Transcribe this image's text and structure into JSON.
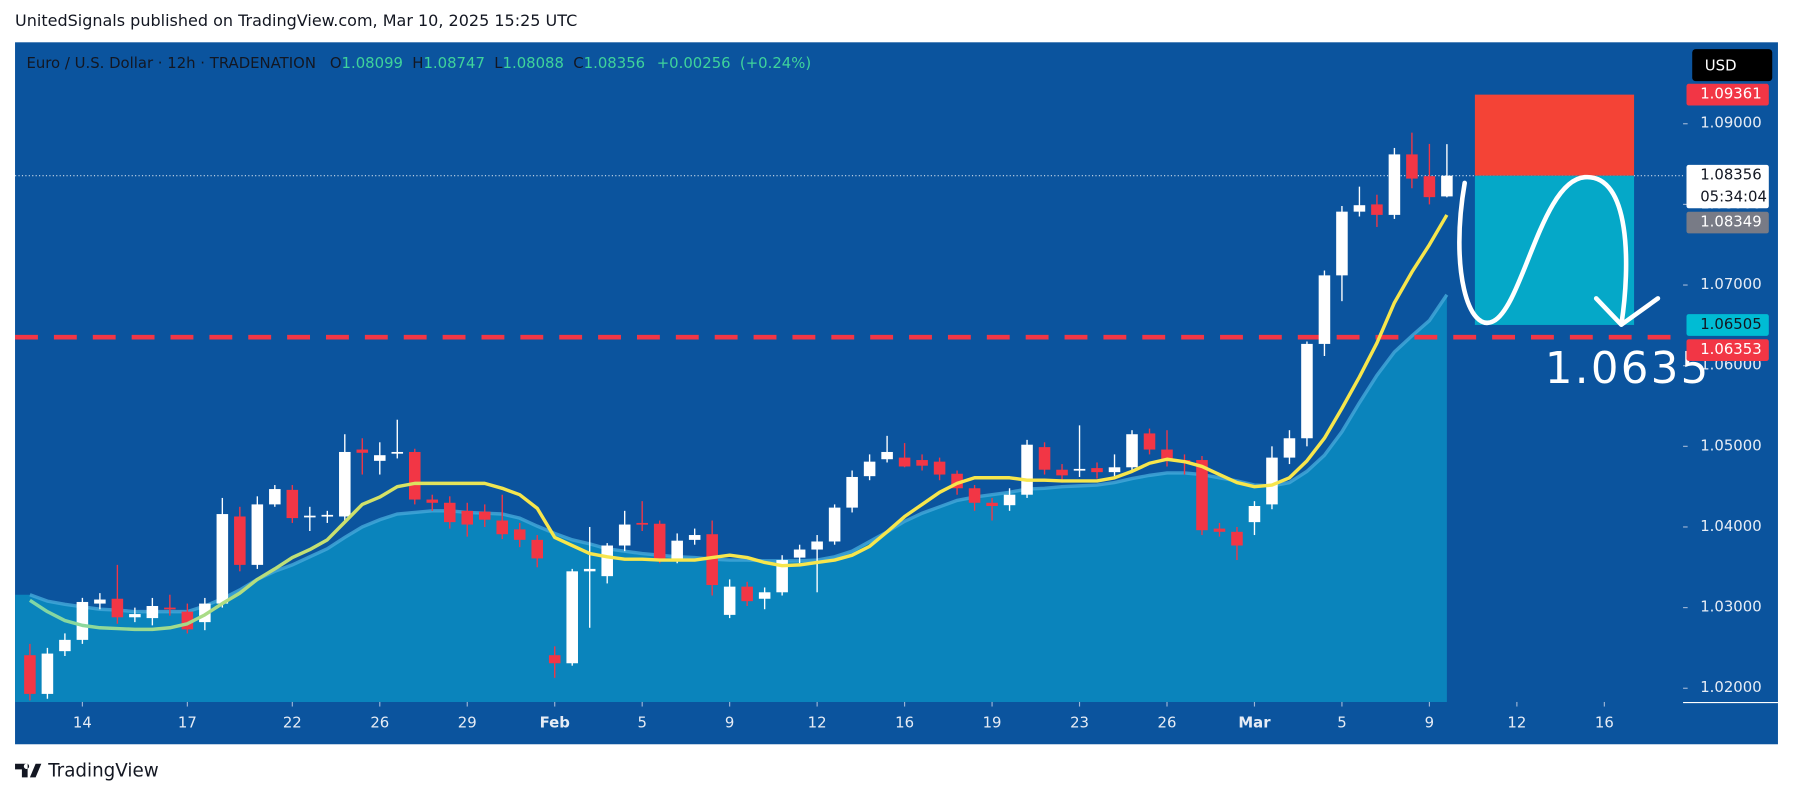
{
  "header": {
    "published": "UnitedSignals published on TradingView.com, Mar 10, 2025 15:25 UTC",
    "currency": "USD",
    "footer_brand": "TradingView"
  },
  "chart_data": {
    "type": "candlestick",
    "legend": {
      "symbol": "Euro / U.S. Dollar · 12h · TRADENATION",
      "o_label": "O",
      "open": 1.08099,
      "h_label": "H",
      "high": 1.08747,
      "l_label": "L",
      "low": 1.08088,
      "c_label": "C",
      "close": 1.08356,
      "change": "+0.00256",
      "change_pct": "(+0.24%)"
    },
    "up_color": "#ffffff",
    "down_color": "#f23645",
    "ohlc": [
      [
        1.0241,
        1.0255,
        1.0185,
        1.0193
      ],
      [
        1.0193,
        1.025,
        1.0187,
        1.0243
      ],
      [
        1.0246,
        1.0268,
        1.024,
        1.026
      ],
      [
        1.026,
        1.0312,
        1.0255,
        1.0307
      ],
      [
        1.0305,
        1.0318,
        1.0298,
        1.031
      ],
      [
        1.0311,
        1.0353,
        1.028,
        1.0288
      ],
      [
        1.0288,
        1.03,
        1.0282,
        1.0292
      ],
      [
        1.0287,
        1.0312,
        1.0278,
        1.0302
      ],
      [
        1.03,
        1.0316,
        1.029,
        1.0298
      ],
      [
        1.0295,
        1.0305,
        1.0268,
        1.0273
      ],
      [
        1.0282,
        1.0312,
        1.0272,
        1.0305
      ],
      [
        1.0305,
        1.0436,
        1.03,
        1.0416
      ],
      [
        1.0413,
        1.0425,
        1.0345,
        1.0353
      ],
      [
        1.0353,
        1.0438,
        1.0348,
        1.0428
      ],
      [
        1.0428,
        1.0452,
        1.0425,
        1.0447
      ],
      [
        1.0446,
        1.0452,
        1.0405,
        1.0411
      ],
      [
        1.0412,
        1.0425,
        1.0395,
        1.0414
      ],
      [
        1.0413,
        1.042,
        1.0405,
        1.0415
      ],
      [
        1.0413,
        1.0515,
        1.0408,
        1.0493
      ],
      [
        1.0496,
        1.051,
        1.0465,
        1.0492
      ],
      [
        1.0482,
        1.0505,
        1.0465,
        1.0489
      ],
      [
        1.0491,
        1.0533,
        1.0485,
        1.0493
      ],
      [
        1.0493,
        1.0497,
        1.0428,
        1.0434
      ],
      [
        1.0434,
        1.044,
        1.042,
        1.043
      ],
      [
        1.043,
        1.0438,
        1.0398,
        1.0406
      ],
      [
        1.042,
        1.043,
        1.0388,
        1.0403
      ],
      [
        1.0419,
        1.0428,
        1.04,
        1.0409
      ],
      [
        1.0408,
        1.044,
        1.0385,
        1.0391
      ],
      [
        1.0397,
        1.0405,
        1.0375,
        1.0384
      ],
      [
        1.0384,
        1.039,
        1.035,
        1.0361
      ],
      [
        1.0241,
        1.0252,
        1.0213,
        1.0231
      ],
      [
        1.0231,
        1.0348,
        1.0228,
        1.0345
      ],
      [
        1.0345,
        1.04,
        1.0275,
        1.0348
      ],
      [
        1.0339,
        1.038,
        1.033,
        1.0377
      ],
      [
        1.0377,
        1.042,
        1.037,
        1.0403
      ],
      [
        1.0405,
        1.0432,
        1.0395,
        1.0403
      ],
      [
        1.0404,
        1.0408,
        1.0355,
        1.0359
      ],
      [
        1.0359,
        1.0392,
        1.0355,
        1.0383
      ],
      [
        1.0384,
        1.0398,
        1.0378,
        1.039
      ],
      [
        1.0391,
        1.0408,
        1.0315,
        1.0328
      ],
      [
        1.0291,
        1.0335,
        1.0287,
        1.0326
      ],
      [
        1.0326,
        1.0332,
        1.0302,
        1.0308
      ],
      [
        1.0311,
        1.0325,
        1.0298,
        1.0319
      ],
      [
        1.0319,
        1.0365,
        1.0315,
        1.0359
      ],
      [
        1.0362,
        1.0378,
        1.0355,
        1.0372
      ],
      [
        1.0372,
        1.039,
        1.0319,
        1.0382
      ],
      [
        1.0382,
        1.0428,
        1.0378,
        1.0424
      ],
      [
        1.0424,
        1.047,
        1.0418,
        1.0462
      ],
      [
        1.0463,
        1.049,
        1.0458,
        1.0481
      ],
      [
        1.0484,
        1.0513,
        1.048,
        1.0493
      ],
      [
        1.0486,
        1.0504,
        1.0474,
        1.0475
      ],
      [
        1.0483,
        1.049,
        1.047,
        1.0476
      ],
      [
        1.0481,
        1.0486,
        1.0458,
        1.0465
      ],
      [
        1.0466,
        1.047,
        1.044,
        1.0448
      ],
      [
        1.0448,
        1.0452,
        1.042,
        1.043
      ],
      [
        1.043,
        1.0436,
        1.0408,
        1.0426
      ],
      [
        1.0427,
        1.0448,
        1.042,
        1.044
      ],
      [
        1.044,
        1.0508,
        1.0436,
        1.0502
      ],
      [
        1.0499,
        1.0505,
        1.0465,
        1.0471
      ],
      [
        1.0471,
        1.0478,
        1.0455,
        1.0464
      ],
      [
        1.047,
        1.0526,
        1.0462,
        1.0472
      ],
      [
        1.0473,
        1.048,
        1.046,
        1.0468
      ],
      [
        1.0468,
        1.049,
        1.0462,
        1.0474
      ],
      [
        1.0474,
        1.052,
        1.047,
        1.0515
      ],
      [
        1.0516,
        1.0522,
        1.049,
        1.0496
      ],
      [
        1.0496,
        1.052,
        1.0475,
        1.0483
      ],
      [
        1.0483,
        1.049,
        1.0465,
        1.0481
      ],
      [
        1.0483,
        1.0488,
        1.039,
        1.0396
      ],
      [
        1.0398,
        1.0405,
        1.0388,
        1.0394
      ],
      [
        1.0394,
        1.04,
        1.0359,
        1.0377
      ],
      [
        1.0406,
        1.0432,
        1.039,
        1.0426
      ],
      [
        1.0428,
        1.05,
        1.0422,
        1.0486
      ],
      [
        1.0486,
        1.052,
        1.0478,
        1.051
      ],
      [
        1.051,
        1.063,
        1.05,
        1.0627
      ],
      [
        1.0627,
        1.0718,
        1.0612,
        1.0712
      ],
      [
        1.0712,
        1.0798,
        1.068,
        1.0791
      ],
      [
        1.0791,
        1.0822,
        1.0785,
        1.0799
      ],
      [
        1.08,
        1.0812,
        1.0772,
        1.0787
      ],
      [
        1.0787,
        1.087,
        1.0782,
        1.0862
      ],
      [
        1.0862,
        1.0889,
        1.082,
        1.0832
      ],
      [
        1.0835,
        1.0875,
        1.08,
        1.0809
      ],
      [
        1.08099,
        1.08747,
        1.08088,
        1.08356
      ]
    ],
    "series": [
      {
        "color": "#f7e64c",
        "style": "line",
        "values": [
          1.0309,
          1.0295,
          1.0284,
          1.0278,
          1.0275,
          1.0274,
          1.0273,
          1.0273,
          1.0275,
          1.028,
          1.0291,
          1.0305,
          1.0318,
          1.0335,
          1.0348,
          1.0362,
          1.0372,
          1.0384,
          1.0406,
          1.0428,
          1.0437,
          1.045,
          1.0454,
          1.0454,
          1.0454,
          1.0454,
          1.0454,
          1.0448,
          1.044,
          1.0423,
          1.0387,
          1.0377,
          1.0367,
          1.0363,
          1.036,
          1.036,
          1.0359,
          1.0359,
          1.0359,
          1.0362,
          1.0365,
          1.0362,
          1.0356,
          1.0352,
          1.0353,
          1.0356,
          1.0359,
          1.0365,
          1.0376,
          1.0394,
          1.0413,
          1.0428,
          1.0443,
          1.0454,
          1.0461,
          1.0461,
          1.0461,
          1.0458,
          1.0458,
          1.0457,
          1.0457,
          1.0457,
          1.0461,
          1.0469,
          1.0479,
          1.0484,
          1.0481,
          1.0475,
          1.0465,
          1.0455,
          1.045,
          1.0452,
          1.0461,
          1.0482,
          1.051,
          1.0547,
          1.0586,
          1.0628,
          1.0678,
          1.0716,
          1.075,
          1.0787
        ]
      },
      {
        "color": "#0a84bc",
        "style": "area",
        "values": [
          1.0316,
          1.0308,
          1.0304,
          1.0301,
          1.0298,
          1.0297,
          1.0295,
          1.0295,
          1.0295,
          1.0295,
          1.0302,
          1.0311,
          1.0322,
          1.0335,
          1.0345,
          1.0353,
          1.0363,
          1.0373,
          1.0387,
          1.04,
          1.0409,
          1.0416,
          1.0418,
          1.042,
          1.042,
          1.0418,
          1.0417,
          1.0416,
          1.0411,
          1.0401,
          1.0392,
          1.0384,
          1.0379,
          1.0373,
          1.037,
          1.0367,
          1.0365,
          1.0363,
          1.0362,
          1.036,
          1.0359,
          1.0359,
          1.0358,
          1.0358,
          1.0358,
          1.0359,
          1.0363,
          1.037,
          1.0382,
          1.0394,
          1.0407,
          1.0417,
          1.0425,
          1.0433,
          1.0437,
          1.044,
          1.0443,
          1.0447,
          1.0448,
          1.045,
          1.0451,
          1.0452,
          1.0455,
          1.046,
          1.0464,
          1.0467,
          1.0467,
          1.0465,
          1.0461,
          1.0457,
          1.0452,
          1.0451,
          1.0455,
          1.0469,
          1.0489,
          1.0518,
          1.0554,
          1.0588,
          1.0617,
          1.0637,
          1.0656,
          1.0688
        ]
      }
    ],
    "xlim": [
      -0.85,
      94.5
    ],
    "xticks": [
      {
        "value": 3,
        "label": "14"
      },
      {
        "value": 9,
        "label": "17"
      },
      {
        "value": 15,
        "label": "22"
      },
      {
        "value": 20,
        "label": "26"
      },
      {
        "value": 25,
        "label": "29"
      },
      {
        "value": 30,
        "label": "Feb"
      },
      {
        "value": 35,
        "label": "5"
      },
      {
        "value": 40,
        "label": "9"
      },
      {
        "value": 45,
        "label": "12"
      },
      {
        "value": 50,
        "label": "16"
      },
      {
        "value": 55,
        "label": "19"
      },
      {
        "value": 60,
        "label": "23"
      },
      {
        "value": 65,
        "label": "26"
      },
      {
        "value": 70,
        "label": "Mar"
      },
      {
        "value": 75,
        "label": "5"
      },
      {
        "value": 80,
        "label": "9"
      },
      {
        "value": 85,
        "label": "12"
      },
      {
        "value": 90,
        "label": "16"
      }
    ],
    "ylim": [
      1.0183,
      1.1001
    ],
    "yticks": [
      {
        "value": 1.02,
        "label": "1.02000"
      },
      {
        "value": 1.03,
        "label": "1.03000"
      },
      {
        "value": 1.04,
        "label": "1.04000"
      },
      {
        "value": 1.05,
        "label": "1.05000"
      },
      {
        "value": 1.06,
        "label": "1.06000"
      },
      {
        "value": 1.07,
        "label": "1.07000"
      },
      {
        "value": 1.08,
        "label": "1.08000"
      },
      {
        "value": 1.09,
        "label": "1.09000"
      }
    ],
    "price_labels": {
      "stop": 1.09361,
      "last": 1.08356,
      "countdown": "05:34:04",
      "bid": 1.08349,
      "target": 1.06505,
      "level": 1.06353
    },
    "level_annotation": "1.0635"
  }
}
